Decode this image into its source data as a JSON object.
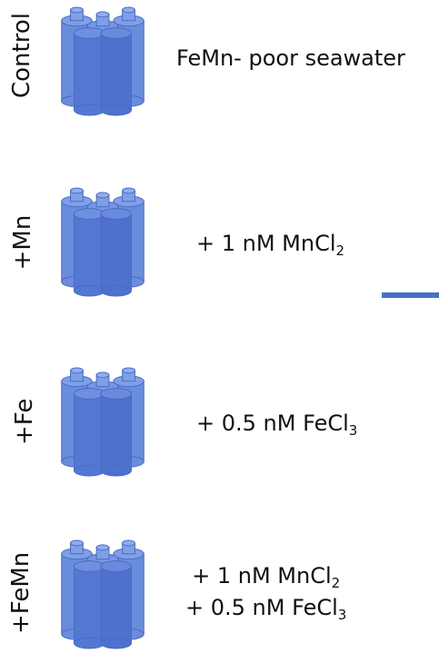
{
  "colors": {
    "bottle_fill": "#5b7fd6",
    "bottle_stroke": "#4a6bc4",
    "accent": "#4472c4"
  },
  "icon": "cubitainer-bottle-cluster-icon",
  "treatments": [
    {
      "label": "Control",
      "lines": [
        {
          "text": "FeMn- poor seawater",
          "sub": "",
          "tail": ""
        }
      ]
    },
    {
      "label": "+Mn",
      "lines": [
        {
          "text": "+ 1 nM MnCl",
          "sub": "2",
          "tail": ""
        }
      ]
    },
    {
      "label": "+Fe",
      "lines": [
        {
          "text": "+ 0.5 nM FeCl",
          "sub": "3",
          "tail": ""
        }
      ]
    },
    {
      "label": "+FeMn",
      "lines": [
        {
          "text": "+ 1 nM MnCl",
          "sub": "2",
          "tail": ""
        },
        {
          "text": "+ 0.5 nM FeCl",
          "sub": "3",
          "tail": ""
        }
      ]
    }
  ]
}
